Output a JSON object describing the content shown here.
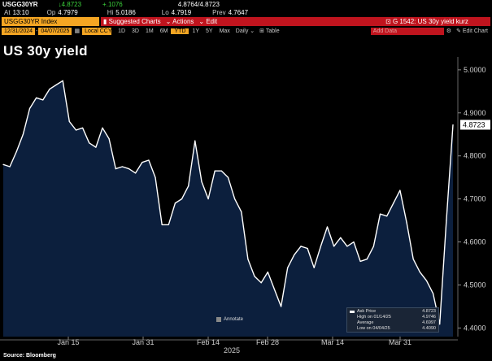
{
  "quote": {
    "ticker": "USGG30YR",
    "last": "4.8723",
    "change": "+.1076",
    "bid_ask": "4.8764/4.8723",
    "at_label": "At",
    "time": "13:10",
    "open_label": "Op",
    "open": "4.7979",
    "high_label": "Hi",
    "high": "5.0186",
    "low_label": "Lo",
    "low": "4.7919",
    "prev_label": "Prev",
    "prev": "4.7647"
  },
  "toolbar": {
    "security": "USGG30YR Index",
    "menu1": "Suggested Charts",
    "menu2": "Actions",
    "menu3": "Edit",
    "right_title": "G 1542: US 30y yield kurz"
  },
  "range": {
    "start": "12/31/2024",
    "end": "04/07/2025",
    "currency": "Local CCY",
    "periods": [
      "1D",
      "3D",
      "1M",
      "6M",
      "YTD",
      "1Y",
      "5Y",
      "Max"
    ],
    "active": "YTD",
    "freq": "Daily",
    "table": "Table",
    "add_data": "Add Data",
    "edit_chart": "Edit Chart"
  },
  "chart_title": "US 30y yield",
  "chart_data": {
    "type": "area",
    "title": "US 30y yield",
    "x_ticks": [
      "Jan 15",
      "Jan 31",
      "Feb 14",
      "Feb 28",
      "Mar 14",
      "Mar 31"
    ],
    "x_year": "2025",
    "y_ticks": [
      "5.0000",
      "4.9000",
      "4.8000",
      "4.7000",
      "4.6000",
      "4.5000",
      "4.4000"
    ],
    "ylim": [
      4.38,
      5.03
    ],
    "last_value_label": "4.8723",
    "values": [
      4.78,
      4.775,
      4.81,
      4.85,
      4.91,
      4.935,
      4.93,
      4.955,
      4.965,
      4.9746,
      4.88,
      4.86,
      4.865,
      4.83,
      4.82,
      4.865,
      4.84,
      4.77,
      4.775,
      4.77,
      4.76,
      4.785,
      4.79,
      4.75,
      4.64,
      4.64,
      4.69,
      4.7,
      4.73,
      4.835,
      4.74,
      4.7,
      4.765,
      4.765,
      4.75,
      4.7,
      4.67,
      4.56,
      4.52,
      4.505,
      4.53,
      4.49,
      4.45,
      4.54,
      4.57,
      4.59,
      4.585,
      4.54,
      4.59,
      4.635,
      4.59,
      4.61,
      4.59,
      4.6,
      4.555,
      4.56,
      4.59,
      4.665,
      4.66,
      4.69,
      4.72,
      4.645,
      4.56,
      4.53,
      4.51,
      4.48,
      4.409,
      4.65,
      4.8723
    ]
  },
  "legend": {
    "series": "Ask Price",
    "value": "4.8723",
    "high_text": "High on 01/14/25",
    "high_val": "4.9746",
    "avg_text": "Average",
    "avg_val": "4.6997",
    "low_text": "Low on 04/04/25",
    "low_val": "4.4090"
  },
  "annotation": "Annotate",
  "source": "Source: Bloomberg",
  "colors": {
    "fill": "#0c1f3d",
    "line": "#ffffff",
    "orange": "#f5a623",
    "red": "#c0141e"
  }
}
